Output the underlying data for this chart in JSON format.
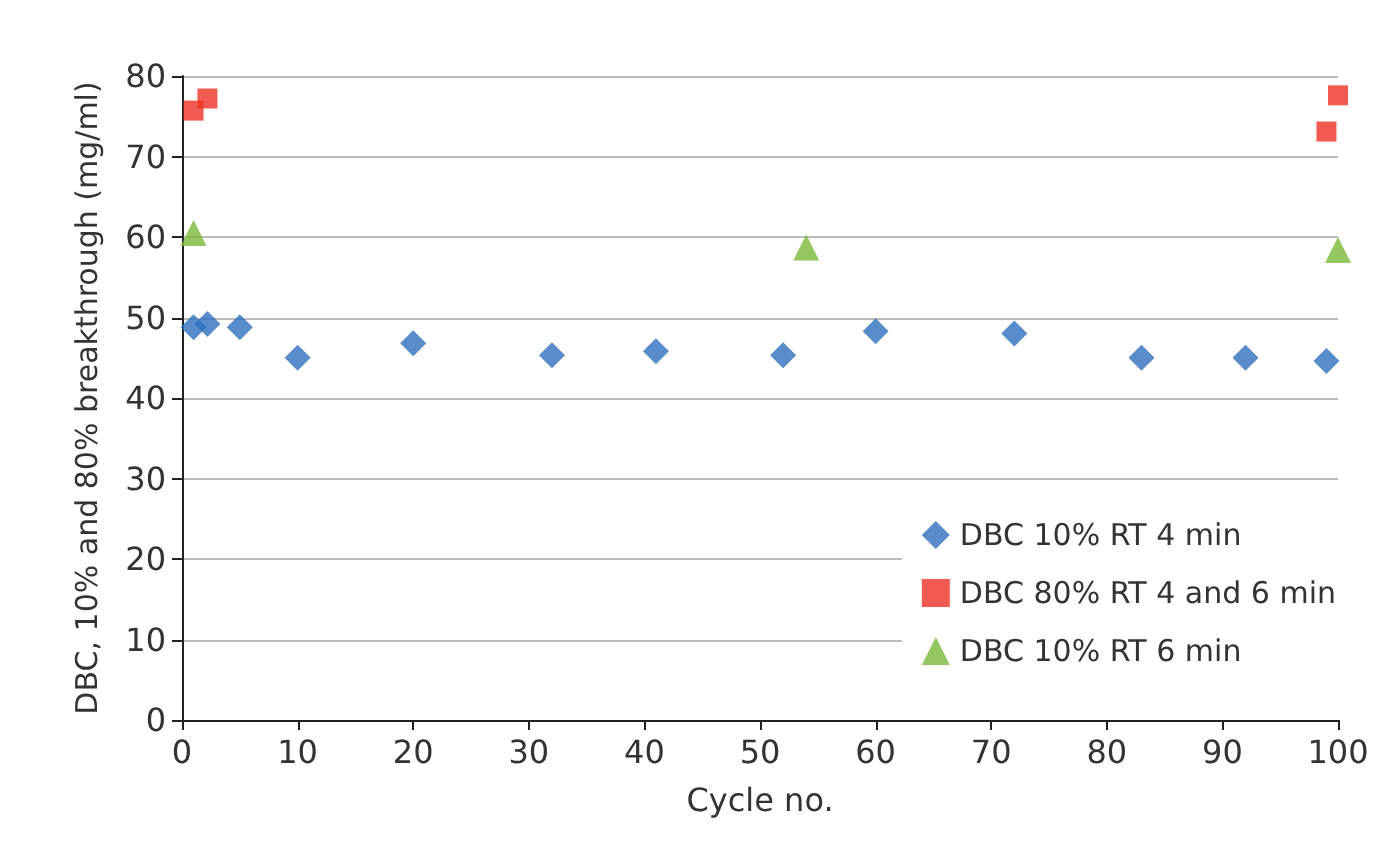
{
  "chart_data": {
    "type": "scatter",
    "xlabel": "Cycle no.",
    "ylabel": "DBC, 10% and 80% breakthrough (mg/ml)",
    "xlim": [
      0,
      100
    ],
    "xticks": [
      0,
      10,
      20,
      30,
      40,
      50,
      60,
      70,
      80,
      90,
      100
    ],
    "ylim": [
      0,
      80
    ],
    "yticks": [
      0,
      10,
      20,
      30,
      40,
      50,
      60,
      70,
      80
    ],
    "grid": "y",
    "legend": "bottom right",
    "series": [
      {
        "name": "DBC 10% RT 4 min",
        "color": "#2e6fbd",
        "marker": "diamond",
        "x": [
          1,
          2.2,
          5,
          10,
          20,
          32,
          41,
          52,
          60,
          72,
          83,
          92,
          99
        ],
        "values": [
          48.8,
          49.2,
          48.8,
          45,
          46.8,
          45.3,
          45.8,
          45.3,
          48.3,
          48,
          45,
          45,
          44.6
        ]
      },
      {
        "name": "DBC 80% RT 4 and 6 min",
        "color": "#ee3124",
        "marker": "square",
        "x": [
          1,
          2.2,
          99,
          100
        ],
        "values": [
          75.7,
          77.2,
          73.1,
          77.6
        ]
      },
      {
        "name": "DBC 10% RT 6 min",
        "color": "#7ab93a",
        "marker": "triangle",
        "x": [
          1,
          54,
          100
        ],
        "values": [
          60.5,
          58.7,
          58.4
        ]
      }
    ]
  }
}
